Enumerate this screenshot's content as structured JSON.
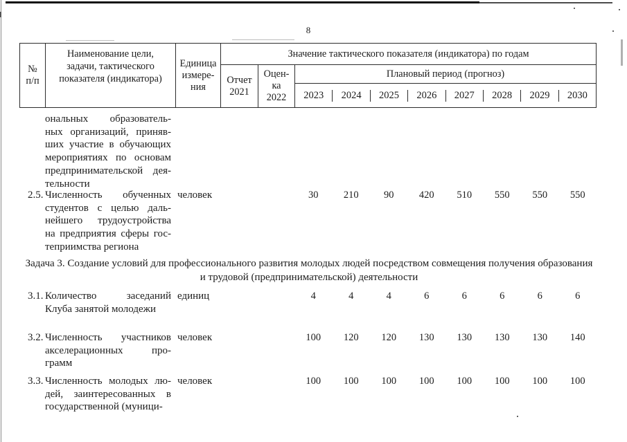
{
  "page_number": "8",
  "colors": {
    "ink": "#1c1c1c",
    "border": "#2b2b2b",
    "page_bg": "#ffffff"
  },
  "table": {
    "header": {
      "num": "№\nп/п",
      "name": "Наименование цели,\nзадачи, тактического\nпоказателя (индикатора)",
      "unit": "Единица\nизмере-\nния",
      "values_title": "Значение тактического показателя (индикатора) по годам",
      "report": "Отчет\n2021",
      "estimate": "Оцен-\nка\n2022",
      "plan": "Плановый период (прогноз)",
      "years": [
        "2023",
        "2024",
        "2025",
        "2026",
        "2027",
        "2028",
        "2029",
        "2030"
      ]
    },
    "rows": [
      {
        "num": "",
        "name_lines": [
          "ональных образователь-",
          "ных организаций, приняв-",
          "ших участие в обучающих",
          "мероприятиях по основам",
          "предпринимательской дея-",
          "тельности"
        ],
        "unit": "",
        "values": [
          "",
          "",
          "",
          "",
          "",
          "",
          "",
          "",
          "",
          ""
        ]
      },
      {
        "num": "2.5.",
        "name_lines": [
          "Численность обученных",
          "студентов с целью даль-",
          "нейшего трудоустройства",
          "на предприятия сферы гос-",
          "теприимства региона"
        ],
        "unit": "человек",
        "values": [
          "",
          "",
          "30",
          "210",
          "90",
          "420",
          "510",
          "550",
          "550",
          "550"
        ]
      },
      {
        "num": "3.1.",
        "name_lines": [
          "Количество заседаний",
          "Клуба занятой молодежи"
        ],
        "unit": "единиц",
        "values": [
          "",
          "",
          "4",
          "4",
          "4",
          "6",
          "6",
          "6",
          "6",
          "6"
        ]
      },
      {
        "num": "3.2.",
        "name_lines": [
          "Численность участников",
          "акселерационных про-",
          "грамм"
        ],
        "unit": "человек",
        "values": [
          "",
          "",
          "100",
          "120",
          "120",
          "130",
          "130",
          "130",
          "130",
          "140"
        ]
      },
      {
        "num": "3.3.",
        "name_lines": [
          "Численность молодых лю-",
          "дей, заинтересованных в",
          "государственной (муници-"
        ],
        "unit": "человек",
        "values": [
          "",
          "",
          "100",
          "100",
          "100",
          "100",
          "100",
          "100",
          "100",
          "100"
        ]
      }
    ],
    "section_heading": "Задача 3. Создание условий для профессионального развития молодых людей посредством совмещения получения образования\nи трудовой (предпринимательской) деятельности"
  }
}
